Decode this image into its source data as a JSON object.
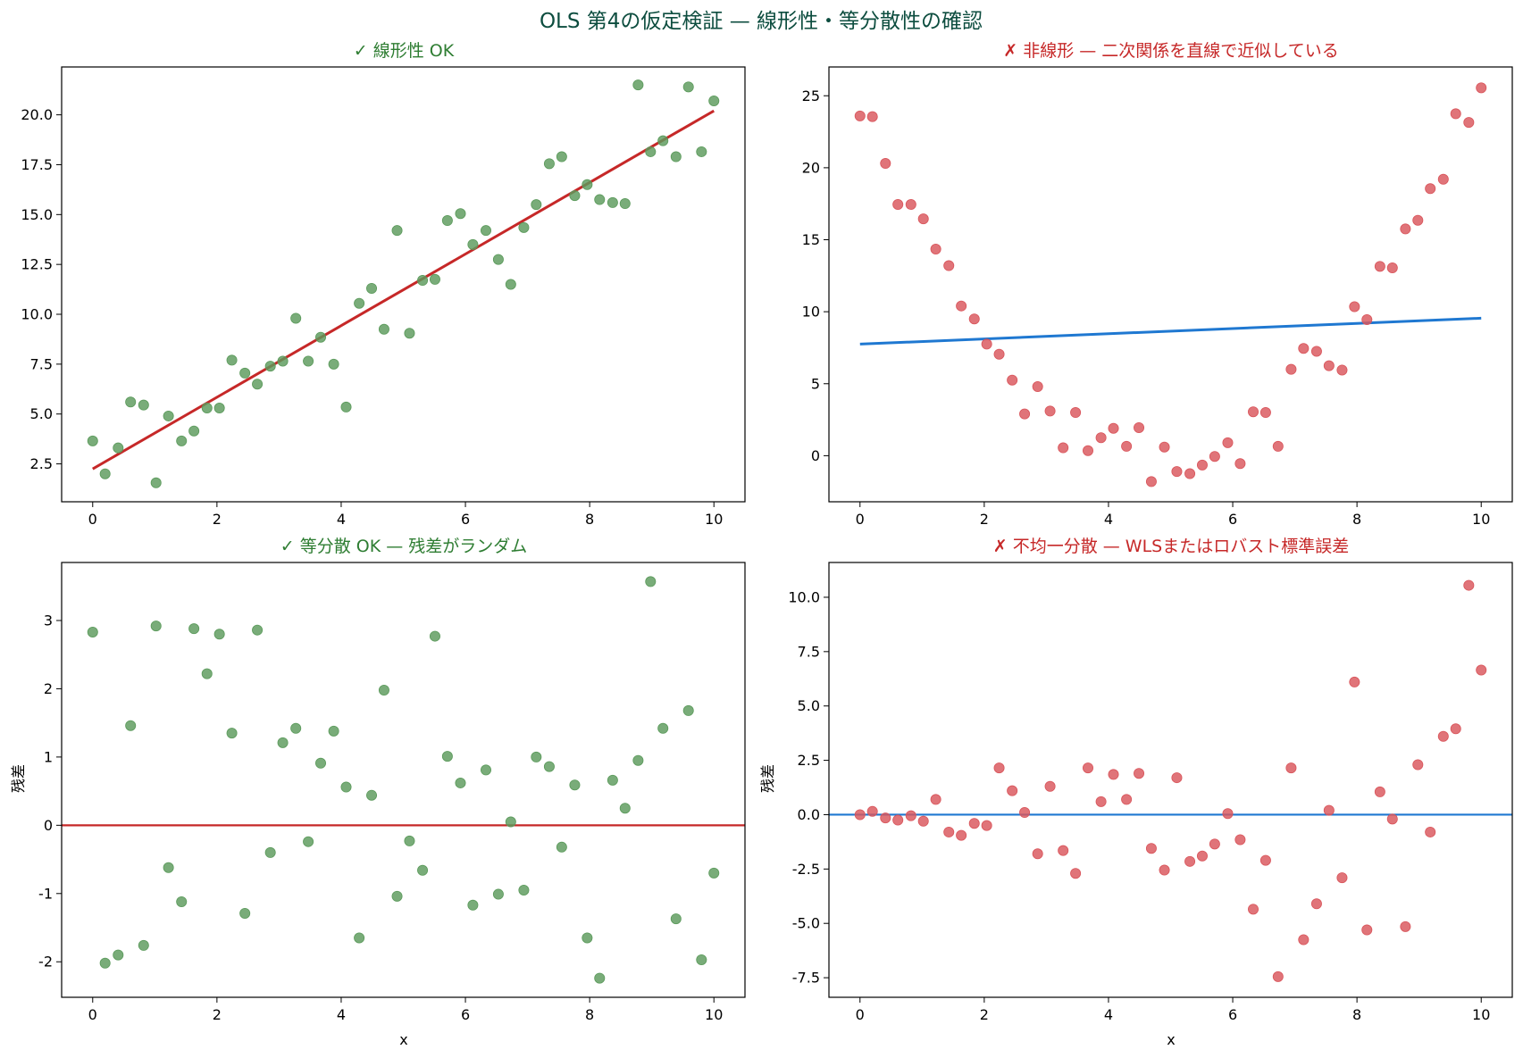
{
  "figure": {
    "suptitle": "OLS 第4の仮定検証 — 線形性・等分散性の確認",
    "fit_line_color_ok": "#c62828",
    "fit_line_color_ng": "#1f78d1",
    "point_color_ok": "#5b9a5b",
    "point_color_ng": "#d9555b",
    "title_color_ok": "#2e7d32",
    "title_color_ng": "#c62828"
  },
  "chart_data": [
    {
      "type": "scatter",
      "title": "✓ 線形性 OK",
      "status": "ok",
      "xlabel": "",
      "ylabel": "",
      "xlim": [
        -0.5,
        10.5
      ],
      "ylim": [
        0.6,
        22.4
      ],
      "xticks": [
        0,
        2,
        4,
        6,
        8,
        10
      ],
      "yticks": [
        2.5,
        5.0,
        7.5,
        10.0,
        12.5,
        15.0,
        17.5,
        20.0
      ],
      "yticklabels": [
        "2.5",
        "5.0",
        "7.5",
        "10.0",
        "12.5",
        "15.0",
        "17.5",
        "20.0"
      ],
      "x": [
        0,
        0.2,
        0.41,
        0.61,
        0.82,
        1.02,
        1.22,
        1.43,
        1.63,
        1.84,
        2.04,
        2.24,
        2.45,
        2.65,
        2.86,
        3.06,
        3.27,
        3.47,
        3.67,
        3.88,
        4.08,
        4.29,
        4.49,
        4.69,
        4.9,
        5.1,
        5.31,
        5.51,
        5.71,
        5.92,
        6.12,
        6.33,
        6.53,
        6.73,
        6.94,
        7.14,
        7.35,
        7.55,
        7.76,
        7.96,
        8.16,
        8.37,
        8.57,
        8.78,
        8.98,
        9.18,
        9.39,
        9.59,
        9.8,
        10.0
      ],
      "y": [
        3.65,
        2.0,
        3.3,
        5.6,
        5.45,
        1.55,
        4.9,
        3.65,
        4.15,
        5.3,
        5.3,
        7.7,
        7.05,
        6.5,
        7.4,
        7.65,
        9.8,
        7.65,
        8.85,
        7.5,
        5.35,
        10.55,
        11.3,
        9.25,
        14.2,
        9.05,
        11.7,
        11.75,
        14.7,
        15.05,
        13.5,
        14.2,
        12.75,
        11.5,
        14.35,
        15.5,
        17.55,
        17.9,
        15.95,
        16.5,
        15.75,
        15.6,
        15.55,
        21.5,
        18.15,
        18.7,
        17.9,
        21.4,
        18.15,
        20.7
      ],
      "fit_line": {
        "x": [
          0,
          10
        ],
        "y": [
          2.25,
          20.2
        ]
      }
    },
    {
      "type": "scatter",
      "title": "✗ 非線形 — 二次関係を直線で近似している",
      "status": "ng",
      "xlabel": "",
      "ylabel": "",
      "xlim": [
        -0.5,
        10.5
      ],
      "ylim": [
        -3.2,
        27.0
      ],
      "xticks": [
        0,
        2,
        4,
        6,
        8,
        10
      ],
      "yticks": [
        0,
        5,
        10,
        15,
        20,
        25
      ],
      "yticklabels": [
        "0",
        "5",
        "10",
        "15",
        "20",
        "25"
      ],
      "x": [
        0,
        0.2,
        0.41,
        0.61,
        0.82,
        1.02,
        1.22,
        1.43,
        1.63,
        1.84,
        2.04,
        2.24,
        2.45,
        2.65,
        2.86,
        3.06,
        3.27,
        3.47,
        3.67,
        3.88,
        4.08,
        4.29,
        4.49,
        4.69,
        4.9,
        5.1,
        5.31,
        5.51,
        5.71,
        5.92,
        6.12,
        6.33,
        6.53,
        6.73,
        6.94,
        7.14,
        7.35,
        7.55,
        7.76,
        7.96,
        8.16,
        8.37,
        8.57,
        8.78,
        8.98,
        9.18,
        9.39,
        9.59,
        9.8,
        10.0
      ],
      "y": [
        23.6,
        23.55,
        20.3,
        17.45,
        17.45,
        16.45,
        14.35,
        13.2,
        10.4,
        9.5,
        7.75,
        7.05,
        5.25,
        2.9,
        4.8,
        3.1,
        0.55,
        3.0,
        0.35,
        1.25,
        1.9,
        0.65,
        1.95,
        -1.8,
        0.6,
        -1.1,
        -1.25,
        -0.65,
        -0.05,
        0.9,
        -0.55,
        3.05,
        3.0,
        0.65,
        6.0,
        7.45,
        7.25,
        6.25,
        5.95,
        10.35,
        9.45,
        13.15,
        13.05,
        15.75,
        16.35,
        18.55,
        19.2,
        23.75,
        23.15,
        25.55
      ],
      "fit_line": {
        "x": [
          0,
          10
        ],
        "y": [
          7.75,
          9.55
        ]
      }
    },
    {
      "type": "scatter",
      "title": "✓ 等分散 OK — 残差がランダム",
      "status": "ok",
      "xlabel": "x",
      "ylabel": "残差",
      "xlim": [
        -0.5,
        10.5
      ],
      "ylim": [
        -2.52,
        3.85
      ],
      "xticks": [
        0,
        2,
        4,
        6,
        8,
        10
      ],
      "yticks": [
        -2,
        -1,
        0,
        1,
        2,
        3
      ],
      "yticklabels": [
        "-2",
        "-1",
        "0",
        "1",
        "2",
        "3"
      ],
      "x": [
        0,
        0.2,
        0.41,
        0.61,
        0.82,
        1.02,
        1.22,
        1.43,
        1.63,
        1.84,
        2.04,
        2.24,
        2.45,
        2.65,
        2.86,
        3.06,
        3.27,
        3.47,
        3.67,
        3.88,
        4.08,
        4.29,
        4.49,
        4.69,
        4.9,
        5.1,
        5.31,
        5.51,
        5.71,
        5.92,
        6.12,
        6.33,
        6.53,
        6.73,
        6.94,
        7.14,
        7.35,
        7.55,
        7.76,
        7.96,
        8.16,
        8.37,
        8.57,
        8.78,
        8.98,
        9.18,
        9.39,
        9.59,
        9.8,
        10.0
      ],
      "y": [
        2.83,
        -2.02,
        -1.9,
        1.46,
        -1.76,
        2.92,
        -0.62,
        -1.12,
        2.88,
        2.22,
        2.8,
        1.35,
        -1.29,
        2.86,
        -0.4,
        1.21,
        1.42,
        -0.24,
        0.91,
        1.38,
        0.56,
        -1.65,
        0.44,
        1.98,
        -1.04,
        -0.23,
        -0.66,
        2.77,
        1.01,
        0.62,
        -1.17,
        0.81,
        -1.01,
        0.05,
        -0.95,
        1.0,
        0.86,
        -0.32,
        0.59,
        -1.65,
        -2.24,
        0.66,
        0.25,
        0.95,
        3.57,
        1.42,
        -1.37,
        1.68,
        -1.97,
        -0.7
      ],
      "hline": 0
    },
    {
      "type": "scatter",
      "title": "✗ 不均一分散 — WLSまたはロバスト標準誤差",
      "status": "ng",
      "xlabel": "x",
      "ylabel": "残差",
      "xlim": [
        -0.5,
        10.5
      ],
      "ylim": [
        -8.4,
        11.6
      ],
      "xticks": [
        0,
        2,
        4,
        6,
        8,
        10
      ],
      "yticks": [
        -7.5,
        -5.0,
        -2.5,
        0.0,
        2.5,
        5.0,
        7.5,
        10.0
      ],
      "yticklabels": [
        "-7.5",
        "-5.0",
        "-2.5",
        "0.0",
        "2.5",
        "5.0",
        "7.5",
        "10.0"
      ],
      "x": [
        0,
        0.2,
        0.41,
        0.61,
        0.82,
        1.02,
        1.22,
        1.43,
        1.63,
        1.84,
        2.04,
        2.24,
        2.45,
        2.65,
        2.86,
        3.06,
        3.27,
        3.47,
        3.67,
        3.88,
        4.08,
        4.29,
        4.49,
        4.69,
        4.9,
        5.1,
        5.31,
        5.51,
        5.71,
        5.92,
        6.12,
        6.33,
        6.53,
        6.73,
        6.94,
        7.14,
        7.35,
        7.55,
        7.76,
        7.96,
        8.16,
        8.37,
        8.57,
        8.78,
        8.98,
        9.18,
        9.39,
        9.59,
        9.8,
        10.0
      ],
      "y": [
        0.0,
        0.15,
        -0.15,
        -0.25,
        -0.05,
        -0.3,
        0.7,
        -0.8,
        -0.95,
        -0.4,
        -0.5,
        2.15,
        1.1,
        0.1,
        -1.8,
        1.3,
        -1.65,
        -2.7,
        2.15,
        0.6,
        1.85,
        0.7,
        1.9,
        -1.55,
        -2.55,
        1.7,
        -2.15,
        -1.9,
        -1.35,
        0.05,
        -1.15,
        -4.35,
        -2.1,
        -7.45,
        2.15,
        -5.75,
        -4.1,
        0.2,
        -2.9,
        6.1,
        -5.3,
        1.05,
        -0.2,
        -5.15,
        2.3,
        -0.8,
        3.6,
        3.95,
        10.55,
        6.65
      ],
      "hline": 0
    }
  ]
}
